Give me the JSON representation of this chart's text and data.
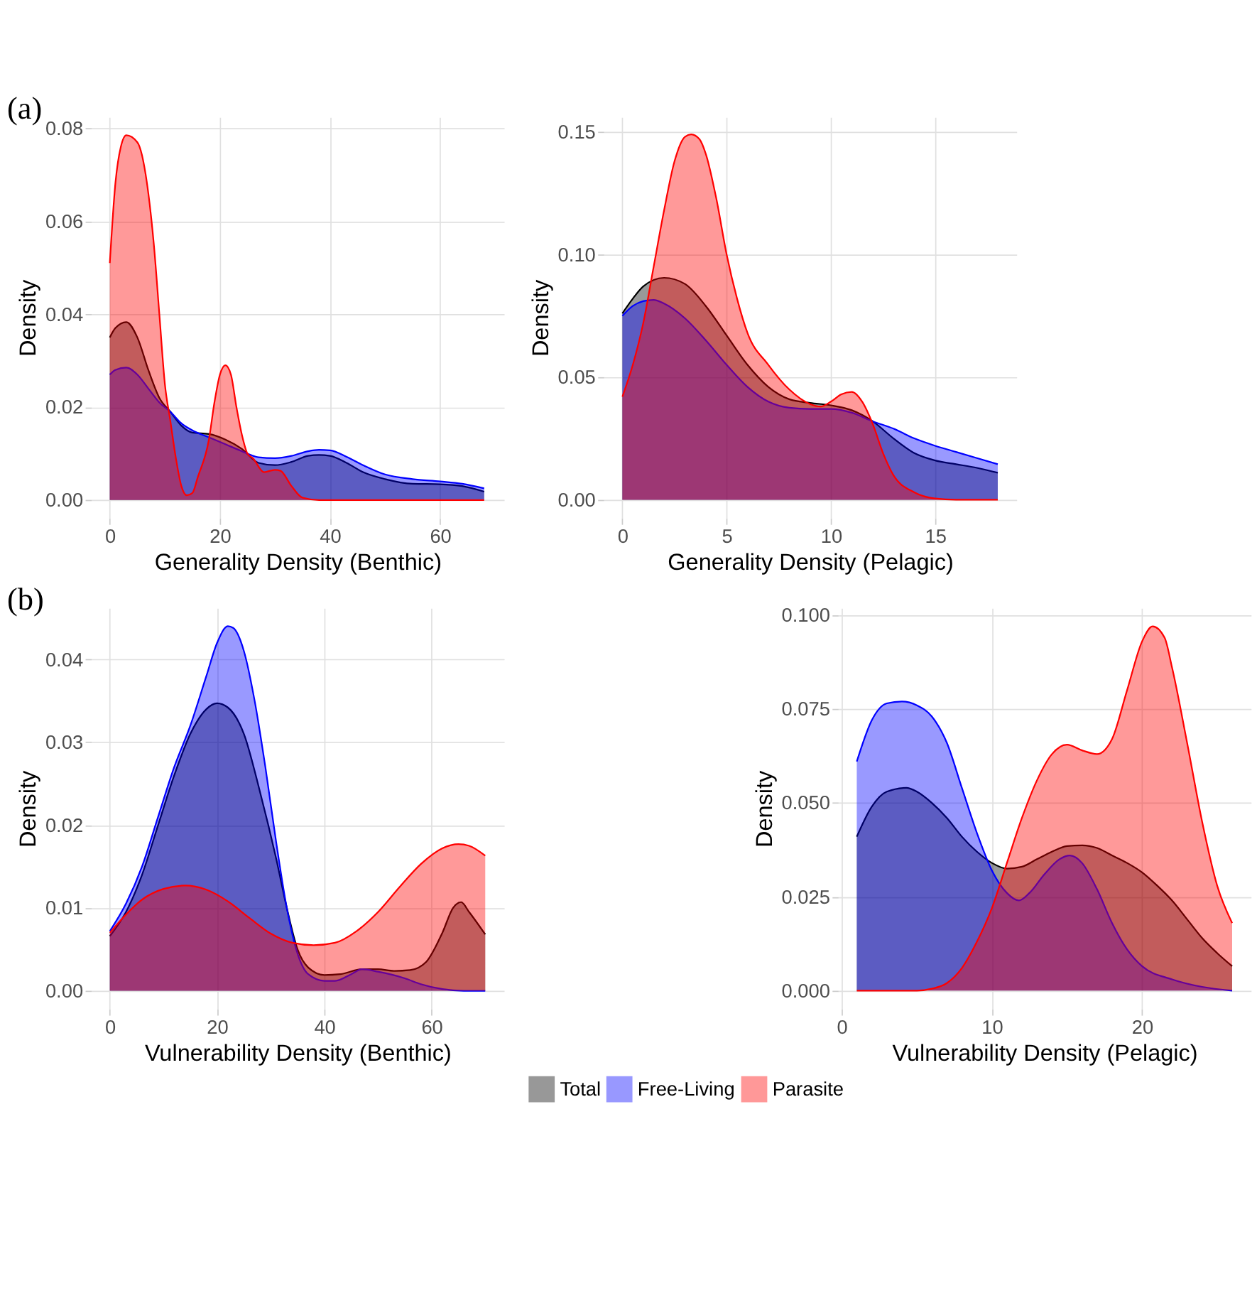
{
  "chart_data": [
    {
      "type": "area",
      "title": "(a)",
      "xlabel": "Generality Density (Benthic)",
      "ylabel": "Density",
      "xlim": [
        -3.4,
        71.6
      ],
      "ylim": [
        -0.0039,
        0.0824
      ],
      "xticks": [
        0,
        20,
        40,
        60
      ],
      "yticks": [
        {
          "value": 0,
          "label": "0.00"
        },
        {
          "value": 0.02,
          "label": "0.02"
        },
        {
          "value": 0.04,
          "label": "0.04"
        },
        {
          "value": 0.06,
          "label": "0.06"
        },
        {
          "value": 0.08,
          "label": "0.08"
        }
      ],
      "grid": true,
      "series": [
        {
          "color": "#000000",
          "x": [
            0,
            1,
            3,
            5,
            7,
            9,
            11,
            13,
            15,
            18,
            21,
            24,
            27,
            30,
            33,
            36,
            38,
            40,
            43,
            46,
            50,
            55,
            60,
            64,
            68
          ],
          "values": [
            0.035,
            0.037,
            0.0383,
            0.035,
            0.028,
            0.022,
            0.019,
            0.016,
            0.0145,
            0.0142,
            0.013,
            0.011,
            0.008,
            0.0075,
            0.0082,
            0.0095,
            0.0097,
            0.0095,
            0.008,
            0.006,
            0.0045,
            0.0035,
            0.0034,
            0.003,
            0.0018
          ]
        },
        {
          "color": "#0000ff",
          "x": [
            0,
            1,
            3,
            5,
            7,
            9,
            11,
            13,
            15,
            18,
            21,
            24,
            27,
            30,
            33,
            36,
            38,
            40,
            43,
            46,
            50,
            55,
            60,
            64,
            68
          ],
          "values": [
            0.027,
            0.028,
            0.0285,
            0.027,
            0.024,
            0.021,
            0.019,
            0.0165,
            0.015,
            0.0135,
            0.012,
            0.0105,
            0.0092,
            0.009,
            0.0095,
            0.0105,
            0.0108,
            0.0107,
            0.0093,
            0.0075,
            0.0055,
            0.0045,
            0.004,
            0.0035,
            0.0025
          ]
        },
        {
          "color": "#ff0000",
          "x": [
            0,
            1,
            2,
            3,
            5,
            7,
            8,
            9,
            10,
            11,
            12,
            13,
            14,
            15,
            16,
            18,
            19,
            20,
            21,
            22,
            23,
            24,
            25,
            26,
            28,
            30,
            31,
            33,
            35,
            38,
            68
          ],
          "values": [
            0.051,
            0.068,
            0.076,
            0.0785,
            0.077,
            0.066,
            0.055,
            0.04,
            0.025,
            0.017,
            0.009,
            0.003,
            0.001,
            0.0015,
            0.005,
            0.013,
            0.021,
            0.027,
            0.029,
            0.027,
            0.02,
            0.014,
            0.01,
            0.009,
            0.006,
            0.0065,
            0.0063,
            0.003,
            0.0005,
            0,
            0
          ]
        }
      ]
    },
    {
      "type": "area",
      "xlabel": "Generality Density (Pelagic)",
      "ylabel": "Density",
      "xlim": [
        -0.9,
        18.9
      ],
      "ylim": [
        -0.0075,
        0.156
      ],
      "xticks": [
        0,
        5,
        10,
        15
      ],
      "yticks": [
        {
          "value": 0,
          "label": "0.00"
        },
        {
          "value": 0.05,
          "label": "0.05"
        },
        {
          "value": 0.1,
          "label": "0.10"
        },
        {
          "value": 0.15,
          "label": "0.15"
        }
      ],
      "grid": true,
      "series": [
        {
          "color": "#000000",
          "x": [
            0,
            0.5,
            1,
            2,
            3,
            4,
            5,
            6,
            7,
            8,
            9,
            10,
            11,
            12,
            13,
            14,
            15,
            16,
            17,
            18
          ],
          "values": [
            0.076,
            0.082,
            0.087,
            0.0905,
            0.088,
            0.079,
            0.067,
            0.055,
            0.046,
            0.041,
            0.0395,
            0.0385,
            0.0365,
            0.032,
            0.025,
            0.019,
            0.016,
            0.0145,
            0.013,
            0.011
          ]
        },
        {
          "color": "#0000ff",
          "x": [
            0,
            0.5,
            1,
            1.5,
            2,
            3,
            4,
            5,
            6,
            7,
            8,
            9,
            10,
            11,
            12,
            13,
            14,
            15,
            16,
            17,
            18
          ],
          "values": [
            0.075,
            0.079,
            0.081,
            0.0815,
            0.08,
            0.074,
            0.065,
            0.055,
            0.046,
            0.04,
            0.0375,
            0.037,
            0.037,
            0.0355,
            0.032,
            0.029,
            0.025,
            0.022,
            0.0195,
            0.017,
            0.0145
          ]
        },
        {
          "color": "#ff0000",
          "x": [
            0,
            0.5,
            1,
            1.5,
            2,
            2.5,
            3,
            3.3,
            3.7,
            4,
            4.5,
            5,
            5.5,
            6,
            7,
            8,
            9,
            9.5,
            10,
            10.5,
            11,
            11.5,
            12,
            12.5,
            13,
            14,
            15,
            16,
            18
          ],
          "values": [
            0.042,
            0.055,
            0.072,
            0.095,
            0.118,
            0.138,
            0.148,
            0.149,
            0.147,
            0.141,
            0.123,
            0.1,
            0.082,
            0.068,
            0.055,
            0.045,
            0.039,
            0.038,
            0.04,
            0.043,
            0.044,
            0.04,
            0.031,
            0.019,
            0.01,
            0.003,
            0.0005,
            0,
            0
          ]
        }
      ]
    },
    {
      "type": "area",
      "title": "(b)",
      "xlabel": "Vulnerability Density (Benthic)",
      "ylabel": "Density",
      "xlim": [
        -3.5,
        73.5
      ],
      "ylim": [
        -0.0022,
        0.0462
      ],
      "xticks": [
        0,
        20,
        40,
        60
      ],
      "yticks": [
        {
          "value": 0,
          "label": "0.00"
        },
        {
          "value": 0.01,
          "label": "0.01"
        },
        {
          "value": 0.02,
          "label": "0.02"
        },
        {
          "value": 0.03,
          "label": "0.03"
        },
        {
          "value": 0.04,
          "label": "0.04"
        }
      ],
      "grid": true,
      "series": [
        {
          "color": "#000000",
          "x": [
            0,
            3,
            6,
            9,
            12,
            15,
            18,
            20,
            22,
            25,
            28,
            31,
            33,
            35,
            37,
            40,
            43,
            47,
            50,
            53,
            56,
            59,
            62,
            64,
            65.5,
            67,
            70
          ],
          "values": [
            0.0066,
            0.0095,
            0.014,
            0.02,
            0.026,
            0.031,
            0.034,
            0.0347,
            0.0342,
            0.031,
            0.024,
            0.016,
            0.01,
            0.005,
            0.0028,
            0.0019,
            0.002,
            0.0026,
            0.0026,
            0.0024,
            0.0025,
            0.0035,
            0.007,
            0.01,
            0.0107,
            0.0095,
            0.0068
          ]
        },
        {
          "color": "#0000ff",
          "x": [
            0,
            3,
            6,
            9,
            12,
            15,
            18,
            20,
            22,
            23,
            25,
            27,
            29,
            31,
            33,
            35,
            37,
            40,
            42,
            45,
            47,
            50,
            55,
            58,
            62,
            66,
            70
          ],
          "values": [
            0.0072,
            0.0105,
            0.015,
            0.021,
            0.027,
            0.032,
            0.038,
            0.042,
            0.044,
            0.0438,
            0.041,
            0.035,
            0.027,
            0.018,
            0.01,
            0.0045,
            0.002,
            0.0012,
            0.0012,
            0.002,
            0.0026,
            0.0023,
            0.0015,
            0.0008,
            0.0002,
            0,
            0
          ]
        },
        {
          "color": "#ff0000",
          "x": [
            0,
            3,
            6,
            10,
            14,
            18,
            22,
            26,
            30,
            34,
            38,
            42,
            46,
            50,
            54,
            58,
            62,
            65,
            67,
            70
          ],
          "values": [
            0.007,
            0.0092,
            0.011,
            0.0123,
            0.0127,
            0.0122,
            0.0108,
            0.0088,
            0.0069,
            0.0058,
            0.0055,
            0.0058,
            0.0072,
            0.0095,
            0.0125,
            0.0153,
            0.0172,
            0.0177,
            0.0175,
            0.0163
          ]
        }
      ]
    },
    {
      "type": "area",
      "xlabel": "Vulnerability Density (Pelagic)",
      "ylabel": "Density",
      "xlim": [
        -0.25,
        27.25
      ],
      "ylim": [
        -0.0049,
        0.1019
      ],
      "xticks": [
        0,
        10,
        20
      ],
      "yticks": [
        {
          "value": 0,
          "label": "0.000"
        },
        {
          "value": 0.025,
          "label": "0.025"
        },
        {
          "value": 0.05,
          "label": "0.050"
        },
        {
          "value": 0.075,
          "label": "0.075"
        },
        {
          "value": 0.1,
          "label": "0.100"
        }
      ],
      "grid": true,
      "legend": "bottom",
      "series": [
        {
          "name": "Total",
          "color": "#000000",
          "x": [
            1,
            2,
            3,
            4.3,
            5,
            6,
            7,
            8,
            9,
            10,
            11,
            12,
            13,
            14,
            15,
            16,
            17,
            18,
            19,
            20,
            21,
            22,
            23,
            24,
            25,
            26
          ],
          "values": [
            0.041,
            0.049,
            0.053,
            0.054,
            0.053,
            0.05,
            0.046,
            0.041,
            0.037,
            0.034,
            0.0325,
            0.033,
            0.035,
            0.037,
            0.0385,
            0.0387,
            0.038,
            0.036,
            0.034,
            0.0315,
            0.028,
            0.024,
            0.019,
            0.014,
            0.01,
            0.0065
          ]
        },
        {
          "name": "Free-Living",
          "color": "#0000ff",
          "x": [
            1,
            2,
            3,
            4,
            5,
            6,
            7,
            8,
            9,
            10,
            11,
            11.8,
            12.5,
            13.5,
            14.5,
            15.2,
            16,
            17,
            18,
            19,
            20,
            22,
            24,
            26
          ],
          "values": [
            0.061,
            0.072,
            0.0765,
            0.077,
            0.076,
            0.073,
            0.066,
            0.054,
            0.042,
            0.032,
            0.026,
            0.024,
            0.026,
            0.031,
            0.035,
            0.036,
            0.034,
            0.027,
            0.018,
            0.011,
            0.0065,
            0.003,
            0.001,
            0
          ]
        },
        {
          "name": "Parasite",
          "color": "#ff0000",
          "x": [
            1,
            5,
            6,
            7,
            8,
            9,
            10,
            11,
            12,
            13,
            14,
            15,
            16,
            17,
            18,
            19,
            20,
            20.7,
            21.5,
            22,
            23,
            24,
            25,
            26
          ],
          "values": [
            0,
            0,
            0.0005,
            0.002,
            0.006,
            0.013,
            0.022,
            0.034,
            0.046,
            0.056,
            0.063,
            0.0655,
            0.064,
            0.063,
            0.067,
            0.08,
            0.093,
            0.097,
            0.094,
            0.086,
            0.066,
            0.045,
            0.028,
            0.018
          ]
        }
      ]
    }
  ]
}
